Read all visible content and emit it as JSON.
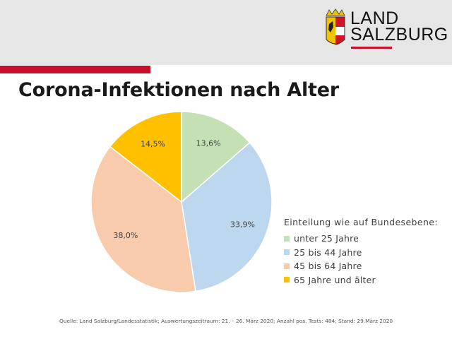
{
  "header": {
    "logo_line1": "LAND",
    "logo_line2": "SALZBURG"
  },
  "title": "Corona-Infektionen nach Alter",
  "legend": {
    "title": "Einteilung wie auf Bundesebene:"
  },
  "source": "Quelle: Land Salzburg/Landesstatistik; Auswertungszeitraum: 21. – 26. März 2020; Anzahl pos. Tests: 484; Stand: 29.März 2020",
  "chart_data": {
    "type": "pie",
    "categories": [
      "unter 25 Jahre",
      "25 bis 44 Jahre",
      "45 bis 64 Jahre",
      "65 Jahre und älter"
    ],
    "values": [
      13.6,
      33.9,
      38.0,
      14.5
    ],
    "labels": [
      "13,6%",
      "33,9%",
      "38,0%",
      "14,5%"
    ],
    "colors": [
      "#c5e0b4",
      "#bdd7ee",
      "#f8cbad",
      "#ffc000"
    ],
    "start_angle": "12 o'clock, clockwise",
    "legend_placement": "right"
  }
}
